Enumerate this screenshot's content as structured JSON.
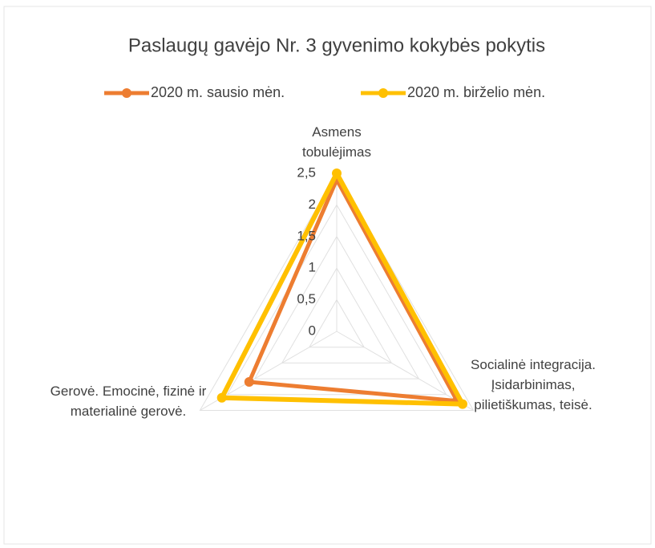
{
  "chart_data": {
    "type": "radar",
    "title": "Paslaugų gavėjo Nr. 3 gyvenimo kokybės pokytis",
    "categories": [
      "Asmens tobulėjimas",
      "Socialinė integracija. Įsidarbinimas, pilietiškumas, teisė.",
      "Gerovė. Emocinė, fizinė ir materialinė gerovė."
    ],
    "series": [
      {
        "name": "2020 m. sausio mėn.",
        "color": "#ed7d31",
        "values": [
          2.4,
          2.2,
          1.6
        ]
      },
      {
        "name": "2020 m. birželio mėn.",
        "color": "#ffc000",
        "values": [
          2.5,
          2.3,
          2.1
        ]
      }
    ],
    "ylim": [
      0,
      2.5
    ],
    "yticks": [
      0,
      {
        "value": 0.5,
        "label": "0,5"
      },
      1,
      {
        "value": 1.5,
        "label": "1,5"
      },
      2,
      {
        "value": 2.5,
        "label": "2,5"
      }
    ],
    "grid": true,
    "legend": "top"
  }
}
